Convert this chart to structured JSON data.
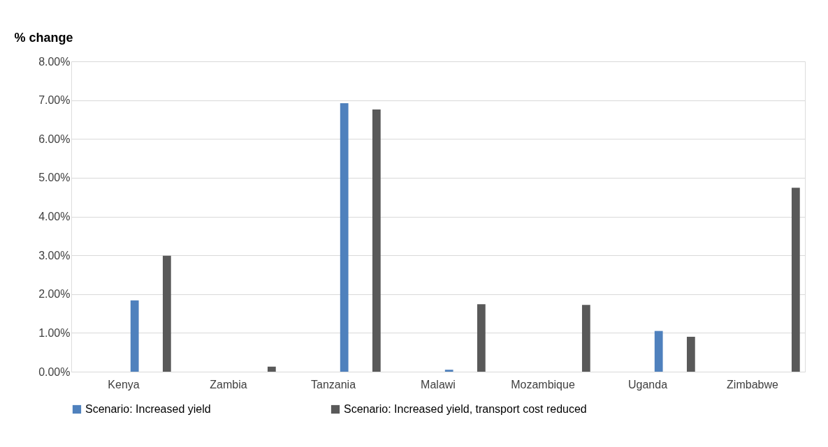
{
  "chart_data": {
    "type": "bar",
    "ylabel": "% change",
    "categories": [
      "Kenya",
      "Zambia",
      "Tanzania",
      "Malawi",
      "Mozambique",
      "Uganda",
      "Zimbabwe"
    ],
    "series": [
      {
        "name": "Scenario: Increased yield",
        "color": "#4f81bd",
        "values": [
          1.84,
          null,
          6.92,
          0.05,
          null,
          1.05,
          null
        ]
      },
      {
        "name": "Scenario: Increased yield, transport cost reduced",
        "color": "#595959",
        "values": [
          2.99,
          0.13,
          6.76,
          1.74,
          1.72,
          0.9,
          4.74
        ]
      }
    ],
    "ylim": [
      0,
      8
    ],
    "yticks": [
      {
        "value": 0,
        "label": "0.00%"
      },
      {
        "value": 1,
        "label": "1.00%"
      },
      {
        "value": 2,
        "label": "2.00%"
      },
      {
        "value": 3,
        "label": "3.00%"
      },
      {
        "value": 4,
        "label": "4.00%"
      },
      {
        "value": 5,
        "label": "5.00%"
      },
      {
        "value": 6,
        "label": "6.00%"
      },
      {
        "value": 7,
        "label": "7.00%"
      },
      {
        "value": 8,
        "label": "8.00%"
      }
    ],
    "grid": "y",
    "legend": "bottom"
  }
}
